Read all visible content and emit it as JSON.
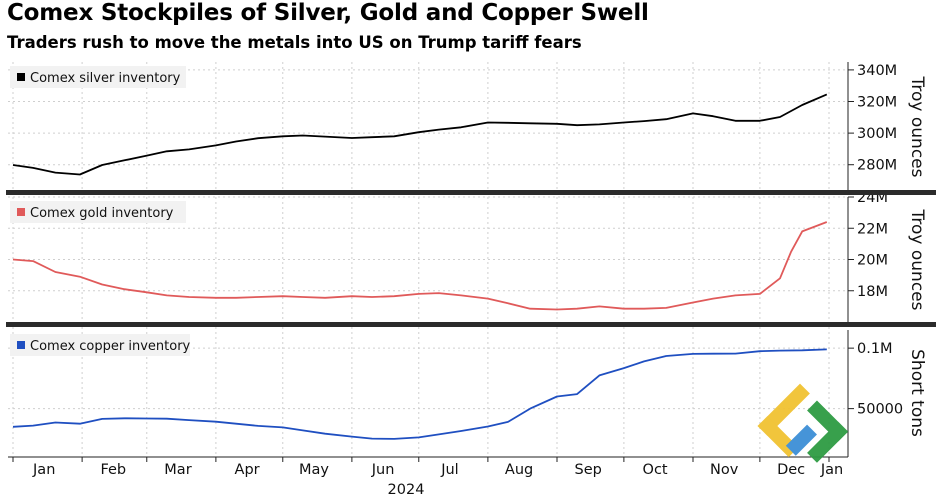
{
  "title": "Comex Stockpiles of Silver, Gold and Copper Swell",
  "subtitle": "Traders rush to move the metals into US on Trump tariff fears",
  "chart_data": [
    {
      "type": "line",
      "series": [
        {
          "name": "Comex silver inventory",
          "color": "#000000"
        }
      ],
      "ylabel": "Troy ounces",
      "yticks": [
        280000000,
        300000000,
        320000000,
        340000000
      ],
      "ytick_labels": [
        "280M",
        "300M",
        "320M",
        "340M"
      ],
      "ylim": [
        264000000,
        345000000
      ],
      "x": [
        "2024-01-01",
        "2024-01-10",
        "2024-01-20",
        "2024-01-31",
        "2024-02-10",
        "2024-02-20",
        "2024-03-01",
        "2024-03-10",
        "2024-03-20",
        "2024-04-01",
        "2024-04-10",
        "2024-04-20",
        "2024-05-01",
        "2024-05-10",
        "2024-05-20",
        "2024-06-01",
        "2024-06-10",
        "2024-06-20",
        "2024-07-01",
        "2024-07-10",
        "2024-07-20",
        "2024-08-01",
        "2024-08-10",
        "2024-08-20",
        "2024-09-01",
        "2024-09-10",
        "2024-09-20",
        "2024-10-01",
        "2024-10-10",
        "2024-10-20",
        "2024-11-01",
        "2024-11-10",
        "2024-11-20",
        "2024-12-01",
        "2024-12-10",
        "2024-12-20",
        "2024-12-31"
      ],
      "values": [
        279800000,
        278000000,
        275000000,
        273800000,
        279800000,
        282800000,
        285800000,
        288500000,
        289700000,
        292200000,
        294700000,
        296800000,
        298000000,
        298500000,
        297800000,
        296900000,
        297400000,
        298000000,
        300600000,
        302200000,
        303700000,
        306700000,
        306500000,
        306200000,
        305900000,
        305000000,
        305500000,
        306700000,
        307600000,
        308800000,
        312500000,
        310700000,
        307800000,
        307800000,
        310200000,
        317800000,
        324500000
      ]
    },
    {
      "type": "line",
      "series": [
        {
          "name": "Comex gold inventory",
          "color": "#e05a5a"
        }
      ],
      "ylabel": "Troy ounces",
      "yticks": [
        18000000,
        20000000,
        22000000,
        24000000
      ],
      "ytick_labels": [
        "18M",
        "20M",
        "22M",
        "24M"
      ],
      "ylim": [
        16000000,
        24000000
      ],
      "x": [
        "2024-01-01",
        "2024-01-10",
        "2024-01-20",
        "2024-01-31",
        "2024-02-10",
        "2024-02-20",
        "2024-03-01",
        "2024-03-10",
        "2024-03-20",
        "2024-04-01",
        "2024-04-10",
        "2024-04-20",
        "2024-05-01",
        "2024-05-10",
        "2024-05-20",
        "2024-06-01",
        "2024-06-10",
        "2024-06-20",
        "2024-07-01",
        "2024-07-10",
        "2024-07-20",
        "2024-08-01",
        "2024-08-10",
        "2024-08-20",
        "2024-09-01",
        "2024-09-10",
        "2024-09-20",
        "2024-10-01",
        "2024-10-10",
        "2024-10-20",
        "2024-11-01",
        "2024-11-10",
        "2024-11-20",
        "2024-12-01",
        "2024-12-10",
        "2024-12-15",
        "2024-12-20",
        "2024-12-31"
      ],
      "values": [
        20000000,
        19900000,
        19200000,
        18900000,
        18400000,
        18100000,
        17900000,
        17700000,
        17600000,
        17550000,
        17550000,
        17600000,
        17650000,
        17600000,
        17550000,
        17650000,
        17600000,
        17650000,
        17800000,
        17850000,
        17700000,
        17500000,
        17200000,
        16850000,
        16800000,
        16850000,
        17000000,
        16850000,
        16850000,
        16900000,
        17250000,
        17500000,
        17700000,
        17800000,
        18800000,
        20500000,
        21800000,
        22400000
      ]
    },
    {
      "type": "line",
      "series": [
        {
          "name": "Comex copper inventory",
          "color": "#1f4fc1"
        }
      ],
      "ylabel": "Short tons",
      "yticks": [
        50000,
        100000
      ],
      "ytick_labels": [
        "50000",
        "0.1M"
      ],
      "ylim": [
        10000,
        115000
      ],
      "x": [
        "2024-01-01",
        "2024-01-10",
        "2024-01-20",
        "2024-01-31",
        "2024-02-10",
        "2024-02-20",
        "2024-03-01",
        "2024-03-10",
        "2024-03-20",
        "2024-04-01",
        "2024-04-10",
        "2024-04-20",
        "2024-05-01",
        "2024-05-10",
        "2024-05-20",
        "2024-06-01",
        "2024-06-10",
        "2024-06-20",
        "2024-07-01",
        "2024-07-10",
        "2024-07-20",
        "2024-08-01",
        "2024-08-10",
        "2024-08-20",
        "2024-09-01",
        "2024-09-10",
        "2024-09-20",
        "2024-10-01",
        "2024-10-10",
        "2024-10-20",
        "2024-11-01",
        "2024-11-10",
        "2024-11-20",
        "2024-12-01",
        "2024-12-10",
        "2024-12-20",
        "2024-12-31"
      ],
      "values": [
        35000,
        36000,
        38500,
        37500,
        41500,
        42000,
        41800,
        41700,
        40500,
        39200,
        37500,
        35700,
        34500,
        32000,
        29300,
        26900,
        25200,
        25000,
        26200,
        28700,
        31500,
        35200,
        39000,
        50000,
        60000,
        62000,
        77500,
        83500,
        89000,
        93500,
        95200,
        95400,
        95500,
        97500,
        98000,
        98200,
        99000
      ]
    }
  ],
  "x_axis": {
    "months": [
      "Jan",
      "Feb",
      "Mar",
      "Apr",
      "May",
      "Jun",
      "Jul",
      "Aug",
      "Sep",
      "Oct",
      "Nov",
      "Dec",
      "Jan"
    ],
    "year_label": "2024"
  }
}
